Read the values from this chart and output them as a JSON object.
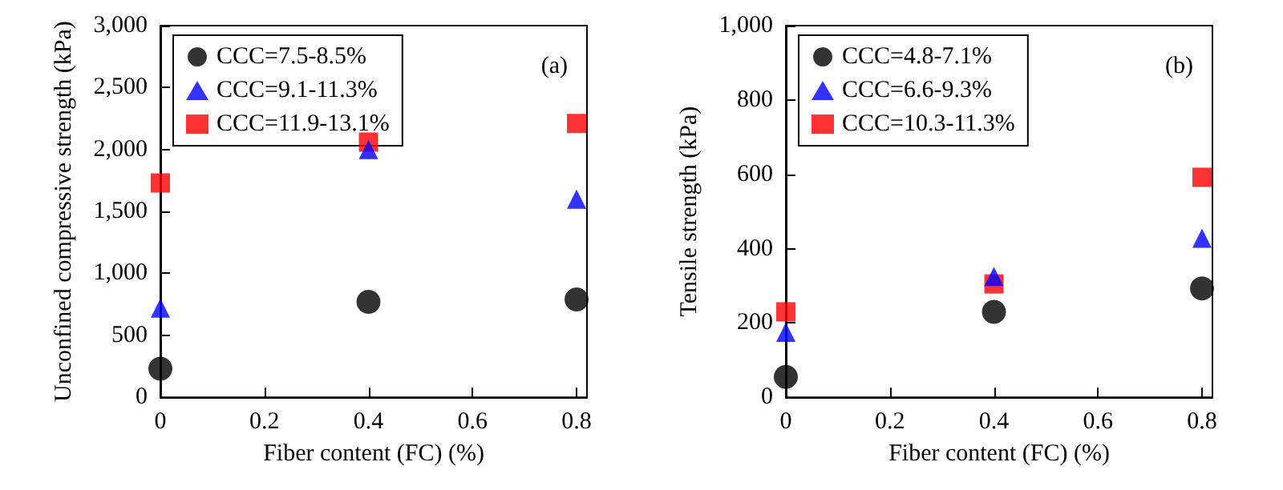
{
  "chart_data": [
    {
      "type": "scatter",
      "xlabel": "Fiber content (FC) (%)",
      "ylabel": "Unconfined compressive strength (kPa)",
      "annotations": [
        "(a)"
      ],
      "xlim": [
        0,
        0.82
      ],
      "xticks": [
        0,
        0.2,
        0.4,
        0.6,
        0.8
      ],
      "ylim": [
        0,
        3000
      ],
      "yticks": [
        {
          "value": 0,
          "label": "0"
        },
        {
          "value": 500,
          "label": "500"
        },
        {
          "value": 1000,
          "label": "1,000"
        },
        {
          "value": 1500,
          "label": "1,500"
        },
        {
          "value": 2000,
          "label": "2,000"
        },
        {
          "value": 2500,
          "label": "2,500"
        },
        {
          "value": 3000,
          "label": "3,000"
        }
      ],
      "grid": false,
      "legend": "top left",
      "x": [
        0,
        0.4,
        0.8
      ],
      "series": [
        {
          "name": "CCC=7.5-8.5%",
          "color": "#000000",
          "marker": "circle",
          "values": [
            230,
            770,
            790
          ]
        },
        {
          "name": "CCC=9.1-11.3%",
          "color": "#0000ff",
          "marker": "triangle",
          "values": [
            720,
            2000,
            1600
          ]
        },
        {
          "name": "CCC=11.9-13.1%",
          "color": "#ff0000",
          "marker": "square",
          "values": [
            1730,
            2060,
            2210
          ]
        }
      ]
    },
    {
      "type": "scatter",
      "xlabel": "Fiber content (FC) (%)",
      "ylabel": "Tensile strength (kPa)",
      "annotations": [
        "(b)"
      ],
      "xlim": [
        0,
        0.82
      ],
      "xticks": [
        0,
        0.2,
        0.4,
        0.6,
        0.8
      ],
      "ylim": [
        0,
        1000
      ],
      "yticks": [
        {
          "value": 0,
          "label": "0"
        },
        {
          "value": 200,
          "label": "200"
        },
        {
          "value": 400,
          "label": "400"
        },
        {
          "value": 600,
          "label": "600"
        },
        {
          "value": 800,
          "label": "800"
        },
        {
          "value": 1000,
          "label": "1,000"
        }
      ],
      "grid": false,
      "legend": "top left",
      "x": [
        0,
        0.4,
        0.8
      ],
      "series": [
        {
          "name": "CCC=4.8-7.1%",
          "color": "#000000",
          "marker": "circle",
          "values": [
            55,
            230,
            293
          ]
        },
        {
          "name": "CCC=6.6-9.3%",
          "color": "#0000ff",
          "marker": "triangle",
          "values": [
            175,
            325,
            428
          ]
        },
        {
          "name": "CCC=10.3-11.3%",
          "color": "#ff0000",
          "marker": "square",
          "values": [
            230,
            305,
            592
          ]
        }
      ]
    }
  ]
}
